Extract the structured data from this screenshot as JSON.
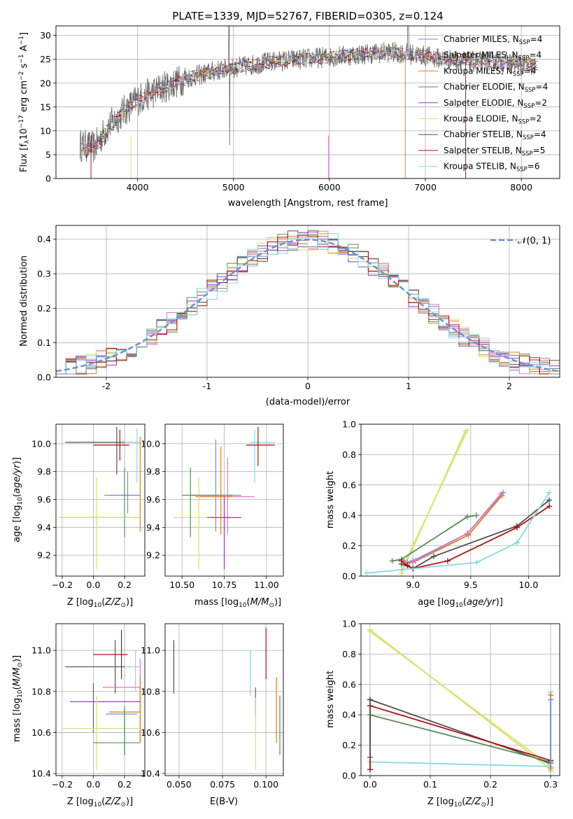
{
  "title": "PLATE=1339, MJD=52767, FIBERID=0305, z=0.124",
  "colors": {
    "chabrier_miles": "#6f8fd8",
    "salpeter_miles": "#e377c2",
    "kroupa_miles": "#e07f22",
    "chabrier_elodie": "#5b8a5b",
    "salpeter_elodie": "#9b30c8",
    "kroupa_elodie": "#d7e36b",
    "chabrier_stelib": "#505050",
    "salpeter_stelib": "#b01010",
    "kroupa_stelib": "#86d9e0"
  },
  "chart_data": [
    {
      "id": "spectrum",
      "type": "line",
      "xlabel": "wavelength [Angstrom, rest frame]",
      "ylabel": "Flux [f_λ10^-17 erg cm^-2 s^-1 A^-1]",
      "xlim": [
        3150,
        8400
      ],
      "ylim": [
        0,
        32
      ],
      "xticks": [
        4000,
        5000,
        6000,
        7000,
        8000
      ],
      "yticks": [
        0,
        5,
        10,
        15,
        20,
        25,
        30
      ],
      "legend_position": "upper-right",
      "legend": [
        {
          "text": "Chabrier MILES, N",
          "sub": "SSP",
          "tail": "=4",
          "color": "chabrier_miles"
        },
        {
          "text": "Salpeter MILES, N",
          "sub": "SSP",
          "tail": "=4",
          "color": "salpeter_miles"
        },
        {
          "text": "Kroupa MILES, N",
          "sub": "SSP",
          "tail": "=4",
          "color": "kroupa_miles"
        },
        {
          "text": "Chabrier ELODIE, N",
          "sub": "SSP",
          "tail": "=4",
          "color": "chabrier_elodie"
        },
        {
          "text": "Salpeter ELODIE, N",
          "sub": "SSP",
          "tail": "=2",
          "color": "salpeter_elodie"
        },
        {
          "text": "Kroupa ELODIE, N",
          "sub": "SSP",
          "tail": "=2",
          "color": "kroupa_elodie"
        },
        {
          "text": "Chabrier STELIB, N",
          "sub": "SSP",
          "tail": "=4",
          "color": "chabrier_stelib"
        },
        {
          "text": "Salpeter STELIB, N",
          "sub": "SSP",
          "tail": "=5",
          "color": "salpeter_stelib"
        },
        {
          "text": "Kroupa STELIB, N",
          "sub": "SSP",
          "tail": "=6",
          "color": "kroupa_stelib"
        }
      ],
      "continuum": [
        [
          3400,
          7
        ],
        [
          3550,
          6.5
        ],
        [
          3700,
          11
        ],
        [
          3850,
          14
        ],
        [
          4000,
          16.5
        ],
        [
          4200,
          18.5
        ],
        [
          4500,
          21
        ],
        [
          4800,
          22.5
        ],
        [
          5100,
          23.5
        ],
        [
          5400,
          24.5
        ],
        [
          5700,
          25
        ],
        [
          6000,
          25.5
        ],
        [
          6300,
          26
        ],
        [
          6600,
          26.5
        ],
        [
          6900,
          26
        ],
        [
          7200,
          25
        ],
        [
          7500,
          24.5
        ],
        [
          7800,
          24.5
        ],
        [
          8150,
          23.5
        ]
      ]
    },
    {
      "id": "residuals",
      "type": "line",
      "xlabel": "(data-model)/error",
      "ylabel": "Normed distribution",
      "xlim": [
        -2.5,
        2.5
      ],
      "ylim": [
        0,
        0.44
      ],
      "xticks": [
        -2,
        -1,
        0,
        1,
        2
      ],
      "yticks": [
        0.0,
        0.1,
        0.2,
        0.3,
        0.4
      ],
      "legend": "𝒩(0, 1)",
      "legend_position": "upper-right",
      "gaussian": {
        "mu": 0,
        "sigma": 1
      }
    },
    {
      "id": "age_vs_Z",
      "type": "scatter",
      "xlabel": "Z [log10(Z/Z⊙)]",
      "ylabel": "age  [log10(age/yr)]",
      "xlim": [
        -0.24,
        0.33
      ],
      "ylim": [
        9.05,
        10.14
      ],
      "xticks": [
        -0.2,
        0.0,
        0.2
      ],
      "yticks": [
        9.2,
        9.4,
        9.6,
        9.8,
        10.0
      ]
    },
    {
      "id": "age_vs_mass",
      "type": "scatter",
      "xlabel": "mass [log10(M/M⊙)]",
      "ylabel": "",
      "xlim": [
        10.4,
        11.1
      ],
      "ylim": [
        9.05,
        10.14
      ],
      "xticks": [
        10.5,
        10.75,
        11.0
      ],
      "yticks": [
        9.2,
        9.4,
        9.6,
        9.8,
        10.0
      ]
    },
    {
      "id": "weight_vs_age",
      "type": "line",
      "xlabel": "age  [log10(age/yr)]",
      "ylabel": "mass weight",
      "xlim": [
        8.55,
        10.27
      ],
      "ylim": [
        0,
        1.0
      ],
      "xticks": [
        9.0,
        9.5,
        10.0
      ],
      "yticks": [
        0.0,
        0.2,
        0.4,
        0.6,
        0.8,
        1.0
      ],
      "series": [
        {
          "color": "kroupa_elodie",
          "x": [
            8.9,
            9.47
          ],
          "y": [
            0.04,
            0.96
          ]
        },
        {
          "color": "kroupa_elodie",
          "x": [
            8.9,
            9.45
          ],
          "y": [
            0.02,
            0.95
          ]
        },
        {
          "color": "chabrier_elodie",
          "x": [
            8.82,
            8.9,
            9.47,
            9.55
          ],
          "y": [
            0.1,
            0.11,
            0.39,
            0.4
          ]
        },
        {
          "color": "chabrier_miles",
          "x": [
            8.93,
            9.0,
            9.47,
            9.78
          ],
          "y": [
            0.09,
            0.1,
            0.28,
            0.55
          ]
        },
        {
          "color": "kroupa_miles",
          "x": [
            8.95,
            9.0,
            9.48,
            9.77
          ],
          "y": [
            0.09,
            0.09,
            0.27,
            0.53
          ]
        },
        {
          "color": "salpeter_miles",
          "x": [
            8.95,
            9.02,
            9.47,
            9.76
          ],
          "y": [
            0.08,
            0.1,
            0.28,
            0.54
          ]
        },
        {
          "color": "chabrier_stelib",
          "x": [
            8.9,
            9.0,
            9.18,
            9.9,
            10.18
          ],
          "y": [
            0.08,
            0.05,
            0.13,
            0.33,
            0.5
          ]
        },
        {
          "color": "salpeter_stelib",
          "x": [
            8.9,
            8.95,
            9.0,
            9.3,
            9.9,
            10.18
          ],
          "y": [
            0.1,
            0.07,
            0.05,
            0.1,
            0.32,
            0.46
          ]
        },
        {
          "color": "kroupa_stelib",
          "x": [
            8.6,
            9.55,
            9.9,
            10.18
          ],
          "y": [
            0.02,
            0.09,
            0.22,
            0.55
          ]
        }
      ]
    },
    {
      "id": "mass_vs_Z",
      "type": "scatter",
      "xlabel": "Z [log10(Z/Z⊙)]",
      "ylabel": "mass [log10(M/M⊙)]",
      "xlim": [
        -0.24,
        0.33
      ],
      "ylim": [
        10.39,
        11.13
      ],
      "xticks": [
        -0.2,
        0.0,
        0.2
      ],
      "yticks": [
        10.4,
        10.6,
        10.8,
        11.0
      ]
    },
    {
      "id": "mass_vs_ebv",
      "type": "scatter",
      "xlabel": "E(B-V)",
      "ylabel": "",
      "xlim": [
        0.042,
        0.11
      ],
      "ylim": [
        10.39,
        11.13
      ],
      "xticks": [
        0.05,
        0.075,
        0.1
      ],
      "yticks": [
        10.4,
        10.6,
        10.8,
        11.0
      ]
    },
    {
      "id": "weight_vs_Z",
      "type": "line",
      "xlabel": "Z [log10(Z/Z⊙)]",
      "ylabel": "mass weight",
      "xlim": [
        -0.015,
        0.315
      ],
      "ylim": [
        0,
        1.0
      ],
      "xticks": [
        0.0,
        0.1,
        0.2,
        0.3
      ],
      "yticks": [
        0.0,
        0.2,
        0.4,
        0.6,
        0.8,
        1.0
      ],
      "series": [
        {
          "color": "kroupa_elodie",
          "x": [
            0.0,
            0.3
          ],
          "y": [
            0.96,
            0.04
          ]
        },
        {
          "color": "kroupa_elodie",
          "x": [
            0.0,
            0.3
          ],
          "y": [
            0.95,
            0.06
          ]
        },
        {
          "color": "chabrier_stelib",
          "x": [
            0.0,
            0.3
          ],
          "y": [
            0.5,
            0.08
          ]
        },
        {
          "color": "salpeter_stelib",
          "x": [
            0.0,
            0.3
          ],
          "y": [
            0.46,
            0.1
          ]
        },
        {
          "color": "chabrier_elodie",
          "x": [
            0.0,
            0.3
          ],
          "y": [
            0.4,
            0.09
          ]
        },
        {
          "color": "kroupa_stelib",
          "x": [
            0.0,
            0.3
          ],
          "y": [
            0.09,
            0.06
          ]
        },
        {
          "color": "salpeter_stelib",
          "x": [
            0.0,
            0.0
          ],
          "y": [
            0.04,
            0.46
          ]
        },
        {
          "color": "chabrier_stelib",
          "x": [
            0.0,
            0.0
          ],
          "y": [
            0.12,
            0.5
          ]
        },
        {
          "color": "kroupa_stelib",
          "x": [
            0.3,
            0.3
          ],
          "y": [
            0.03,
            0.55
          ]
        },
        {
          "color": "kroupa_miles",
          "x": [
            0.3,
            0.3
          ],
          "y": [
            0.05,
            0.53
          ]
        },
        {
          "color": "chabrier_miles",
          "x": [
            0.3,
            0.3
          ],
          "y": [
            0.08,
            0.5
          ]
        }
      ]
    }
  ]
}
